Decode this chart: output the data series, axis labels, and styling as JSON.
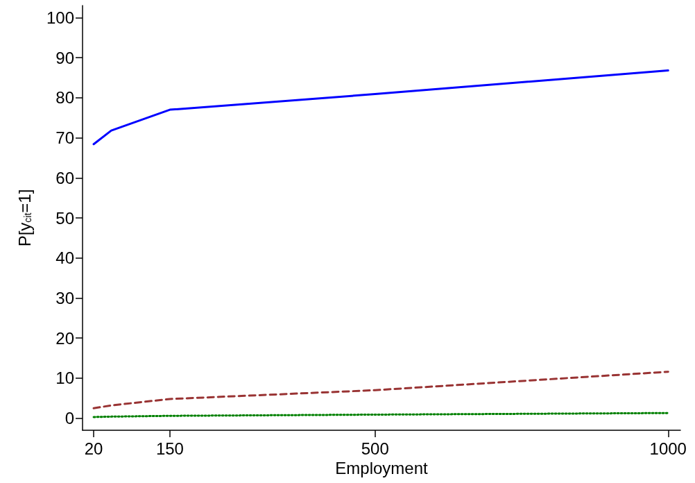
{
  "chart_data": {
    "type": "line",
    "xlabel": "Employment",
    "ylabel": "P[y$_{cit}$=1]",
    "x": [
      20,
      50,
      150,
      500,
      1000
    ],
    "series": [
      {
        "color": "#0000ff",
        "line_style": "solid",
        "values": [
          68.4,
          71.8,
          77.0,
          80.9,
          86.8
        ]
      },
      {
        "color": "#993333",
        "line_style": "dashed",
        "values": [
          2.5,
          3.2,
          4.8,
          7.0,
          11.6
        ]
      },
      {
        "color": "#008000",
        "line_style": "dotted",
        "values": [
          0.3,
          0.4,
          0.6,
          0.9,
          1.3
        ]
      }
    ],
    "xlim": [
      1,
      1021
    ],
    "xticks": [
      20,
      150,
      500,
      1000
    ],
    "ylim": [
      -3,
      103
    ],
    "yticks": [
      0,
      10,
      20,
      30,
      40,
      50,
      60,
      70,
      80,
      90,
      100
    ],
    "grid": false,
    "marker": "none"
  }
}
